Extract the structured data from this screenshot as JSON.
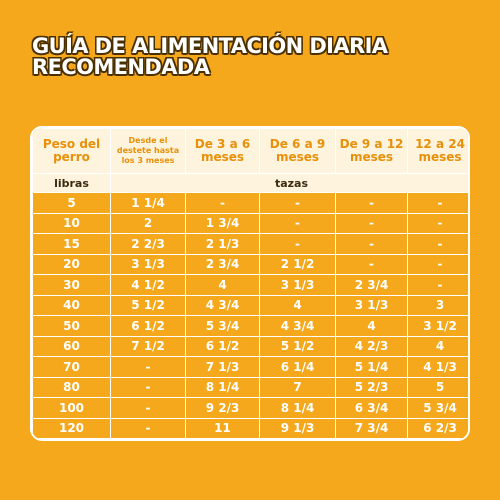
{
  "title": [
    "GUÍA DE ALIMENTACIÓN DIARIA",
    "RECOMENDADA"
  ],
  "table": {
    "headers": [
      "Peso del perro",
      "Desde el destete hasta los 3 meses",
      "De 3 a 6 meses",
      "De 6 a 9 meses",
      "De 9 a 12 meses",
      "12 a 24 meses"
    ],
    "subheaders": [
      "libras",
      "tazas"
    ],
    "rows": [
      [
        "5",
        "1 1/4",
        "-",
        "-",
        "-",
        "-"
      ],
      [
        "10",
        "2",
        "1 3/4",
        "-",
        "-",
        "-"
      ],
      [
        "15",
        "2 2/3",
        "2 1/3",
        "-",
        "-",
        "-"
      ],
      [
        "20",
        "3 1/3",
        "2 3/4",
        "2 1/2",
        "-",
        "-"
      ],
      [
        "30",
        "4 1/2",
        "4",
        "3 1/3",
        "2 3/4",
        "-"
      ],
      [
        "40",
        "5 1/2",
        "4 3/4",
        "4",
        "3 1/3",
        "3"
      ],
      [
        "50",
        "6 1/2",
        "5 3/4",
        "4 3/4",
        "4",
        "3 1/2"
      ],
      [
        "60",
        "7 1/2",
        "6 1/2",
        "5 1/2",
        "4 2/3",
        "4"
      ],
      [
        "70",
        "-",
        "7 1/3",
        "6 1/4",
        "5 1/4",
        "4 1/3"
      ],
      [
        "80",
        "-",
        "8 1/4",
        "7",
        "5 2/3",
        "5"
      ],
      [
        "100",
        "-",
        "9 2/3",
        "8 1/4",
        "6 3/4",
        "5 3/4"
      ],
      [
        "120",
        "-",
        "11",
        "9 1/3",
        "7 3/4",
        "6 2/3"
      ]
    ]
  }
}
